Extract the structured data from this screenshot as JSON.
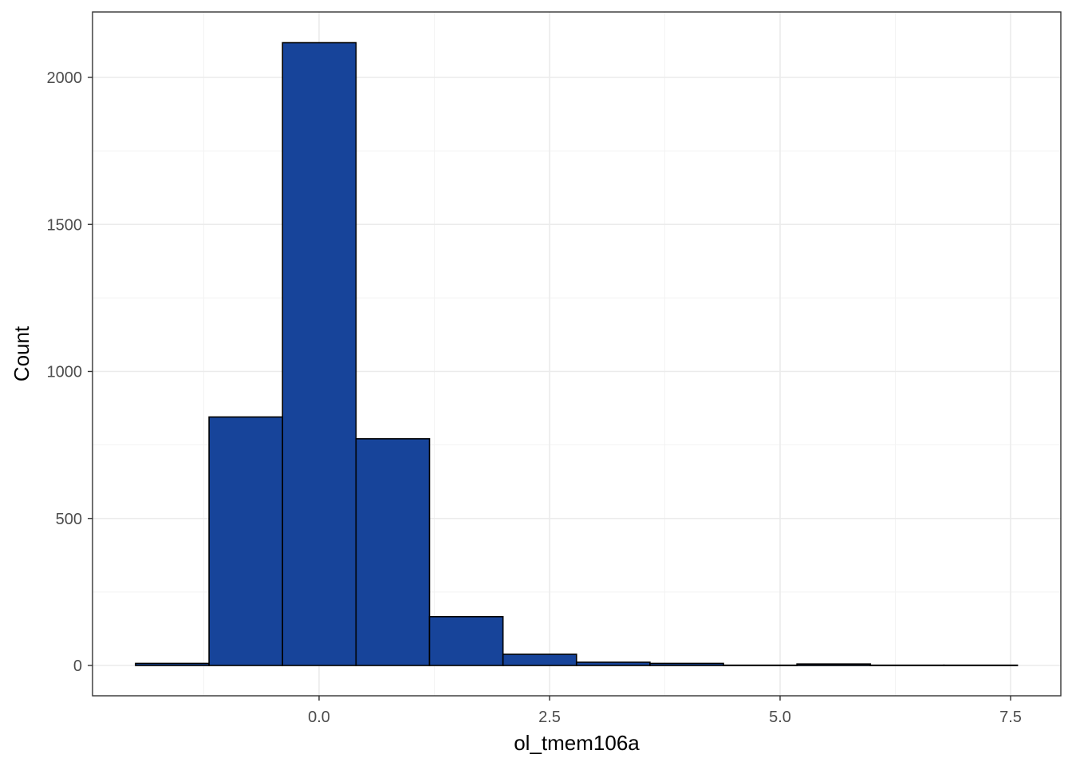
{
  "chart_data": {
    "type": "bar",
    "subtype": "histogram",
    "title": "",
    "xlabel": "ol_tmem106a",
    "ylabel": "Count",
    "xlim": [
      -1.24,
      8.0
    ],
    "ylim": [
      -105,
      2215
    ],
    "x_ticks": [
      0,
      2.5,
      5,
      7.5
    ],
    "x_tick_labels": [
      "0.0",
      "2.5",
      "5.0",
      "7.5"
    ],
    "y_ticks": [
      0,
      500,
      1000,
      1500,
      2000
    ],
    "y_tick_labels": [
      "0",
      "500",
      "1000",
      "1500",
      "2000"
    ],
    "grid": true,
    "bin_width": 0.797,
    "bins": [
      {
        "x0": -1.99,
        "x1": -1.193,
        "count": 7
      },
      {
        "x0": -1.193,
        "x1": -0.396,
        "count": 845
      },
      {
        "x0": -0.396,
        "x1": 0.401,
        "count": 2118
      },
      {
        "x0": 0.401,
        "x1": 1.198,
        "count": 771
      },
      {
        "x0": 1.198,
        "x1": 1.995,
        "count": 166
      },
      {
        "x0": 1.995,
        "x1": 2.792,
        "count": 38
      },
      {
        "x0": 2.792,
        "x1": 3.589,
        "count": 11
      },
      {
        "x0": 3.589,
        "x1": 4.386,
        "count": 7
      },
      {
        "x0": 4.386,
        "x1": 5.183,
        "count": 1
      },
      {
        "x0": 5.183,
        "x1": 5.98,
        "count": 5
      },
      {
        "x0": 5.98,
        "x1": 6.777,
        "count": 1
      },
      {
        "x0": 6.777,
        "x1": 7.574,
        "count": 1
      }
    ],
    "colors": {
      "bar_fill": "#17449a",
      "bar_outline": "#000000"
    }
  }
}
